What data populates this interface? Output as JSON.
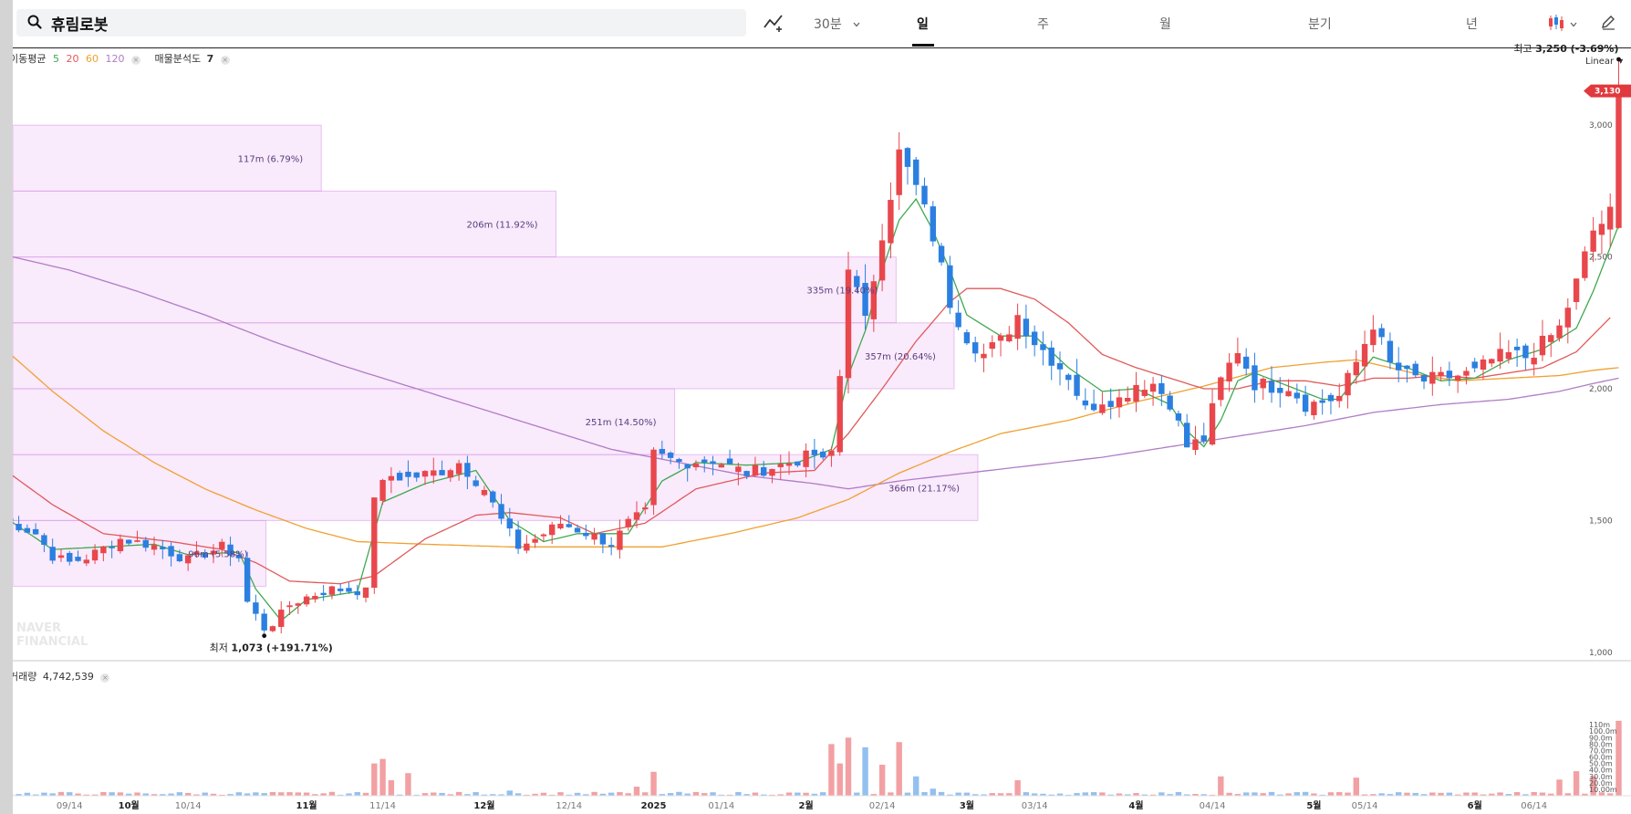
{
  "app": {
    "stock_name": "휴림로봇",
    "timeframes": [
      {
        "label": "30분",
        "active": false
      },
      {
        "label": "일",
        "active": true
      },
      {
        "label": "주",
        "active": false
      },
      {
        "label": "월",
        "active": false
      },
      {
        "label": "분기",
        "active": false
      },
      {
        "label": "년",
        "active": false
      }
    ],
    "scale_label": "Linear"
  },
  "indicators": {
    "ma_label": "이동평균",
    "ma_periods": [
      {
        "value": "5",
        "color": "#3fa94f"
      },
      {
        "value": "20",
        "color": "#e05a5a"
      },
      {
        "value": "60",
        "color": "#f0a030"
      },
      {
        "value": "120",
        "color": "#b07cc6"
      }
    ],
    "volume_profile_label": "매물분석도",
    "volume_profile_value": "7",
    "volume_label": "거래량",
    "volume_value": "4,742,539"
  },
  "watermark": [
    "NAVER",
    "FINANCIAL"
  ],
  "chart_data": {
    "type": "candlestick",
    "price_axis": {
      "ticks": [
        1000,
        1500,
        2000,
        2500,
        3000
      ],
      "labels": [
        "1,000",
        "1,500",
        "2,000",
        "2,500",
        "3,000"
      ],
      "range": [
        975,
        3295
      ]
    },
    "current_price": {
      "value": 3130,
      "label": "3,130",
      "color": "#e0393e"
    },
    "high_marker": {
      "value": 3250,
      "label_prefix": "최고",
      "label_value": "3,250",
      "label_change": "(-3.69%)"
    },
    "low_marker": {
      "value": 1073,
      "label_prefix": "최저",
      "label_value": "1,073",
      "label_change": "(+191.71%)"
    },
    "x_axis_labels": [
      {
        "label": "09/14",
        "index": 8,
        "bold": false
      },
      {
        "label": "10월",
        "index": 15,
        "bold": true
      },
      {
        "label": "10/14",
        "index": 22,
        "bold": false
      },
      {
        "label": "11월",
        "index": 36,
        "bold": true
      },
      {
        "label": "11/14",
        "index": 45,
        "bold": false
      },
      {
        "label": "12월",
        "index": 57,
        "bold": true
      },
      {
        "label": "12/14",
        "index": 67,
        "bold": false
      },
      {
        "label": "2025",
        "index": 77,
        "bold": true
      },
      {
        "label": "01/14",
        "index": 85,
        "bold": false
      },
      {
        "label": "2월",
        "index": 95,
        "bold": true
      },
      {
        "label": "02/14",
        "index": 104,
        "bold": false
      },
      {
        "label": "3월",
        "index": 114,
        "bold": true
      },
      {
        "label": "03/14",
        "index": 122,
        "bold": false
      },
      {
        "label": "4월",
        "index": 134,
        "bold": true
      },
      {
        "label": "04/14",
        "index": 143,
        "bold": false
      },
      {
        "label": "5월",
        "index": 155,
        "bold": true
      },
      {
        "label": "05/14",
        "index": 161,
        "bold": false
      },
      {
        "label": "6월",
        "index": 174,
        "bold": true
      },
      {
        "label": "06/14",
        "index": 181,
        "bold": false
      }
    ],
    "candle_anchors": [
      [
        0,
        1510
      ],
      [
        4,
        1450
      ],
      [
        6,
        1365
      ],
      [
        8,
        1340
      ],
      [
        10,
        1360
      ],
      [
        14,
        1430
      ],
      [
        18,
        1405
      ],
      [
        22,
        1350
      ],
      [
        26,
        1400
      ],
      [
        28,
        1360
      ],
      [
        29,
        1190
      ],
      [
        31,
        1090
      ],
      [
        32,
        1110
      ],
      [
        34,
        1180
      ],
      [
        36,
        1210
      ],
      [
        39,
        1240
      ],
      [
        43,
        1230
      ],
      [
        44,
        1600
      ],
      [
        46,
        1670
      ],
      [
        48,
        1660
      ],
      [
        52,
        1690
      ],
      [
        54,
        1720
      ],
      [
        57,
        1620
      ],
      [
        59,
        1500
      ],
      [
        61,
        1400
      ],
      [
        63,
        1430
      ],
      [
        66,
        1490
      ],
      [
        70,
        1440
      ],
      [
        72,
        1410
      ],
      [
        74,
        1490
      ],
      [
        76,
        1530
      ],
      [
        77,
        1750
      ],
      [
        80,
        1720
      ],
      [
        84,
        1730
      ],
      [
        88,
        1680
      ],
      [
        92,
        1710
      ],
      [
        96,
        1750
      ],
      [
        97,
        1720
      ],
      [
        98,
        1760
      ],
      [
        99,
        2050
      ],
      [
        100,
        2480
      ],
      [
        102,
        2250
      ],
      [
        104,
        2600
      ],
      [
        106,
        2890
      ],
      [
        108,
        2760
      ],
      [
        110,
        2580
      ],
      [
        112,
        2330
      ],
      [
        114,
        2200
      ],
      [
        116,
        2130
      ],
      [
        118,
        2180
      ],
      [
        120,
        2280
      ],
      [
        122,
        2180
      ],
      [
        126,
        2050
      ],
      [
        128,
        1920
      ],
      [
        130,
        1960
      ],
      [
        132,
        1960
      ],
      [
        134,
        2020
      ],
      [
        136,
        2020
      ],
      [
        138,
        1950
      ],
      [
        140,
        1780
      ],
      [
        142,
        1810
      ],
      [
        144,
        2030
      ],
      [
        146,
        2150
      ],
      [
        148,
        2020
      ],
      [
        150,
        2010
      ],
      [
        152,
        2010
      ],
      [
        154,
        1940
      ],
      [
        156,
        1950
      ],
      [
        158,
        1970
      ],
      [
        160,
        2100
      ],
      [
        162,
        2250
      ],
      [
        164,
        2090
      ],
      [
        166,
        2050
      ],
      [
        168,
        2030
      ],
      [
        170,
        2040
      ],
      [
        172,
        2050
      ],
      [
        174,
        2060
      ],
      [
        176,
        2110
      ],
      [
        178,
        2130
      ],
      [
        180,
        2120
      ],
      [
        182,
        2170
      ],
      [
        184,
        2230
      ],
      [
        186,
        2400
      ],
      [
        188,
        2600
      ],
      [
        190,
        2660
      ],
      [
        191,
        3130
      ]
    ],
    "volume_axis": {
      "ticks": [
        10,
        20,
        30,
        40,
        50,
        60,
        70,
        80,
        90,
        100,
        110
      ],
      "labels": [
        "10.00m",
        "20.0m",
        "30.0m",
        "40.0m",
        "50.0m",
        "60.0m",
        "70.0m",
        "80.0m",
        "90.0m",
        "100.0m",
        "110m"
      ]
    },
    "volume_spikes": [
      [
        44,
        50
      ],
      [
        45,
        57
      ],
      [
        46,
        24
      ],
      [
        48,
        35
      ],
      [
        60,
        8
      ],
      [
        75,
        14
      ],
      [
        77,
        37
      ],
      [
        98,
        80
      ],
      [
        99,
        50
      ],
      [
        100,
        90
      ],
      [
        102,
        75
      ],
      [
        104,
        48
      ],
      [
        106,
        83
      ],
      [
        108,
        30
      ],
      [
        110,
        11
      ],
      [
        120,
        24
      ],
      [
        144,
        30
      ],
      [
        160,
        28
      ],
      [
        184,
        25
      ],
      [
        186,
        38
      ],
      [
        188,
        30
      ],
      [
        191,
        116
      ]
    ],
    "volume_profile": [
      {
        "price_low": 2750,
        "price_high": 3000,
        "label": "117m (6.79%)",
        "volume": 117
      },
      {
        "price_low": 2500,
        "price_high": 2750,
        "label": "206m (11.92%)",
        "volume": 206
      },
      {
        "price_low": 2250,
        "price_high": 2500,
        "label": "335m (19.40%)",
        "volume": 335
      },
      {
        "price_low": 2000,
        "price_high": 2250,
        "label": "357m (20.64%)",
        "volume": 357
      },
      {
        "price_low": 1750,
        "price_high": 2000,
        "label": "251m (14.50%)",
        "volume": 251
      },
      {
        "price_low": 1500,
        "price_high": 1750,
        "label": "366m (21.17%)",
        "volume": 366
      },
      {
        "price_low": 1250,
        "price_high": 1500,
        "label": "96m (5.58%)",
        "volume": 96
      }
    ],
    "ma_anchors": {
      "ma5": {
        "color": "#3fa94f",
        "points": [
          [
            0,
            1520
          ],
          [
            6,
            1390
          ],
          [
            12,
            1400
          ],
          [
            18,
            1410
          ],
          [
            22,
            1370
          ],
          [
            28,
            1380
          ],
          [
            30,
            1240
          ],
          [
            33,
            1120
          ],
          [
            36,
            1200
          ],
          [
            42,
            1230
          ],
          [
            45,
            1570
          ],
          [
            50,
            1640
          ],
          [
            56,
            1690
          ],
          [
            60,
            1500
          ],
          [
            64,
            1420
          ],
          [
            68,
            1450
          ],
          [
            74,
            1450
          ],
          [
            78,
            1650
          ],
          [
            82,
            1720
          ],
          [
            88,
            1710
          ],
          [
            94,
            1720
          ],
          [
            98,
            1770
          ],
          [
            100,
            2050
          ],
          [
            102,
            2220
          ],
          [
            104,
            2450
          ],
          [
            106,
            2640
          ],
          [
            108,
            2720
          ],
          [
            110,
            2600
          ],
          [
            112,
            2450
          ],
          [
            114,
            2280
          ],
          [
            118,
            2200
          ],
          [
            122,
            2200
          ],
          [
            126,
            2080
          ],
          [
            130,
            1990
          ],
          [
            134,
            2000
          ],
          [
            138,
            1940
          ],
          [
            140,
            1840
          ],
          [
            142,
            1780
          ],
          [
            144,
            1880
          ],
          [
            146,
            2030
          ],
          [
            148,
            2060
          ],
          [
            152,
            2010
          ],
          [
            156,
            1960
          ],
          [
            158,
            1960
          ],
          [
            162,
            2120
          ],
          [
            166,
            2080
          ],
          [
            170,
            2030
          ],
          [
            174,
            2040
          ],
          [
            178,
            2110
          ],
          [
            182,
            2150
          ],
          [
            186,
            2230
          ],
          [
            188,
            2370
          ],
          [
            191,
            2620
          ]
        ]
      },
      "ma20": {
        "color": "#e05a5a",
        "points": [
          [
            0,
            1700
          ],
          [
            6,
            1560
          ],
          [
            12,
            1450
          ],
          [
            20,
            1420
          ],
          [
            26,
            1390
          ],
          [
            30,
            1340
          ],
          [
            34,
            1270
          ],
          [
            40,
            1260
          ],
          [
            44,
            1290
          ],
          [
            50,
            1430
          ],
          [
            56,
            1520
          ],
          [
            60,
            1530
          ],
          [
            66,
            1510
          ],
          [
            70,
            1450
          ],
          [
            76,
            1490
          ],
          [
            82,
            1620
          ],
          [
            90,
            1680
          ],
          [
            96,
            1690
          ],
          [
            100,
            1830
          ],
          [
            104,
            2000
          ],
          [
            108,
            2180
          ],
          [
            112,
            2330
          ],
          [
            114,
            2380
          ],
          [
            118,
            2380
          ],
          [
            122,
            2340
          ],
          [
            126,
            2250
          ],
          [
            130,
            2130
          ],
          [
            134,
            2080
          ],
          [
            138,
            2040
          ],
          [
            142,
            2000
          ],
          [
            146,
            2000
          ],
          [
            150,
            2030
          ],
          [
            154,
            2030
          ],
          [
            158,
            2010
          ],
          [
            162,
            2040
          ],
          [
            166,
            2040
          ],
          [
            170,
            2050
          ],
          [
            174,
            2040
          ],
          [
            178,
            2060
          ],
          [
            182,
            2080
          ],
          [
            186,
            2140
          ],
          [
            190,
            2270
          ]
        ]
      },
      "ma60": {
        "color": "#f0a030",
        "points": [
          [
            0,
            2160
          ],
          [
            6,
            1990
          ],
          [
            12,
            1840
          ],
          [
            18,
            1720
          ],
          [
            24,
            1620
          ],
          [
            30,
            1540
          ],
          [
            36,
            1470
          ],
          [
            42,
            1420
          ],
          [
            50,
            1410
          ],
          [
            60,
            1400
          ],
          [
            70,
            1400
          ],
          [
            78,
            1400
          ],
          [
            86,
            1450
          ],
          [
            94,
            1510
          ],
          [
            100,
            1580
          ],
          [
            106,
            1680
          ],
          [
            112,
            1760
          ],
          [
            118,
            1830
          ],
          [
            126,
            1880
          ],
          [
            134,
            1950
          ],
          [
            142,
            2010
          ],
          [
            150,
            2080
          ],
          [
            156,
            2100
          ],
          [
            160,
            2110
          ],
          [
            164,
            2080
          ],
          [
            168,
            2050
          ],
          [
            172,
            2030
          ],
          [
            178,
            2040
          ],
          [
            184,
            2050
          ],
          [
            188,
            2070
          ],
          [
            191,
            2080
          ]
        ]
      },
      "ma120": {
        "color": "#b07cc6",
        "points": [
          [
            0,
            2510
          ],
          [
            8,
            2450
          ],
          [
            16,
            2370
          ],
          [
            24,
            2280
          ],
          [
            32,
            2180
          ],
          [
            40,
            2090
          ],
          [
            48,
            2010
          ],
          [
            56,
            1930
          ],
          [
            64,
            1850
          ],
          [
            72,
            1770
          ],
          [
            80,
            1720
          ],
          [
            88,
            1670
          ],
          [
            96,
            1640
          ],
          [
            100,
            1620
          ],
          [
            106,
            1650
          ],
          [
            114,
            1680
          ],
          [
            122,
            1710
          ],
          [
            130,
            1740
          ],
          [
            138,
            1780
          ],
          [
            146,
            1820
          ],
          [
            154,
            1860
          ],
          [
            162,
            1910
          ],
          [
            170,
            1940
          ],
          [
            178,
            1960
          ],
          [
            184,
            1990
          ],
          [
            188,
            2020
          ],
          [
            191,
            2040
          ]
        ]
      }
    },
    "grid": false,
    "up_color": "#e8474c",
    "down_color": "#2b7fe0"
  }
}
